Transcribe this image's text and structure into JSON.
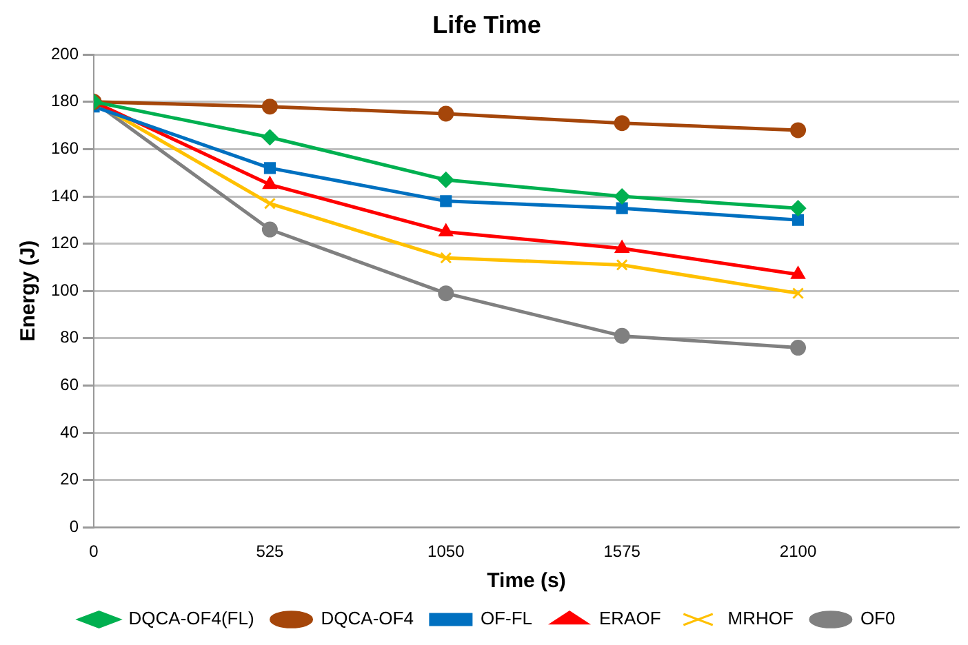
{
  "chart_data": {
    "type": "line",
    "title": "Life Time",
    "xlabel": "Time (s)",
    "ylabel": "Energy (J)",
    "x": [
      0,
      525,
      1050,
      1575,
      2100
    ],
    "xlim": [
      0,
      2580
    ],
    "xticks": [
      0,
      525,
      1050,
      1575,
      2100
    ],
    "ylim": [
      0,
      200
    ],
    "yticks": [
      0,
      20,
      40,
      60,
      80,
      100,
      120,
      140,
      160,
      180,
      200
    ],
    "grid": "y",
    "legend": "bottom",
    "series": [
      {
        "name": "DQCA-OF4(FL)",
        "color": "#00b050",
        "marker": "diamond",
        "values": [
          180,
          165,
          147,
          140,
          135
        ]
      },
      {
        "name": "DQCA-OF4",
        "color": "#a5460a",
        "marker": "circle",
        "values": [
          180,
          178,
          175,
          171,
          168
        ]
      },
      {
        "name": "OF-FL",
        "color": "#0070c0",
        "marker": "square",
        "values": [
          178,
          152,
          138,
          135,
          130
        ]
      },
      {
        "name": "ERAOF",
        "color": "#ff0000",
        "marker": "triangle",
        "values": [
          180,
          145,
          125,
          118,
          107
        ]
      },
      {
        "name": "MRHOF",
        "color": "#ffc000",
        "marker": "cross",
        "values": [
          180,
          137,
          114,
          111,
          99
        ]
      },
      {
        "name": "OF0",
        "color": "#808080",
        "marker": "circle",
        "values": [
          180,
          126,
          99,
          81,
          76
        ]
      }
    ]
  }
}
